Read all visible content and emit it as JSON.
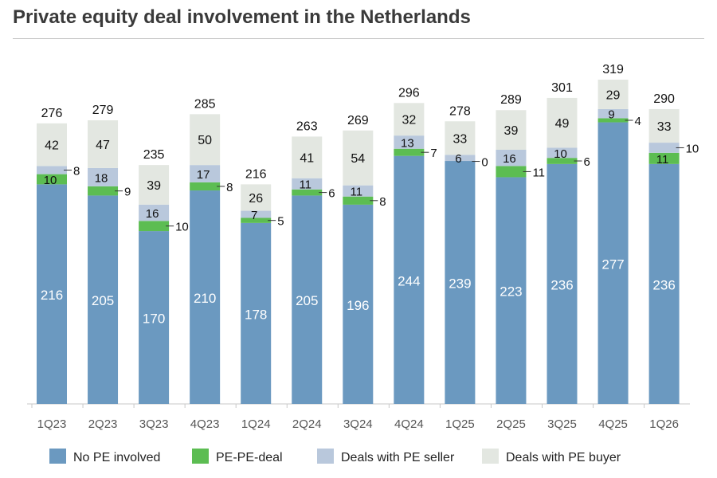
{
  "chart_data": {
    "type": "bar",
    "stacked": true,
    "title": "Private equity deal involvement in the Netherlands",
    "categories": [
      "1Q23",
      "2Q23",
      "3Q23",
      "4Q23",
      "1Q24",
      "2Q24",
      "3Q24",
      "4Q24",
      "1Q25",
      "2Q25",
      "3Q25",
      "4Q25",
      "1Q26"
    ],
    "series": [
      {
        "name": "No PE involved",
        "color": "#6b99c0",
        "values": [
          216,
          205,
          170,
          210,
          178,
          205,
          196,
          244,
          239,
          223,
          236,
          277,
          236
        ]
      },
      {
        "name": "PE-PE-deal",
        "color": "#5cbd52",
        "values": [
          10,
          9,
          10,
          8,
          5,
          6,
          8,
          7,
          0,
          11,
          6,
          4,
          11
        ]
      },
      {
        "name": "Deals with PE seller",
        "color": "#b9c8dc",
        "values": [
          8,
          18,
          16,
          17,
          7,
          11,
          11,
          13,
          6,
          16,
          10,
          9,
          10
        ]
      },
      {
        "name": "Deals with PE buyer",
        "color": "#e3e7e1",
        "values": [
          42,
          47,
          39,
          50,
          26,
          41,
          54,
          32,
          33,
          39,
          49,
          29,
          33
        ]
      }
    ],
    "totals": [
      276,
      279,
      235,
      285,
      216,
      263,
      269,
      296,
      278,
      289,
      301,
      319,
      290
    ],
    "legend_position": "bottom",
    "grid": false
  }
}
